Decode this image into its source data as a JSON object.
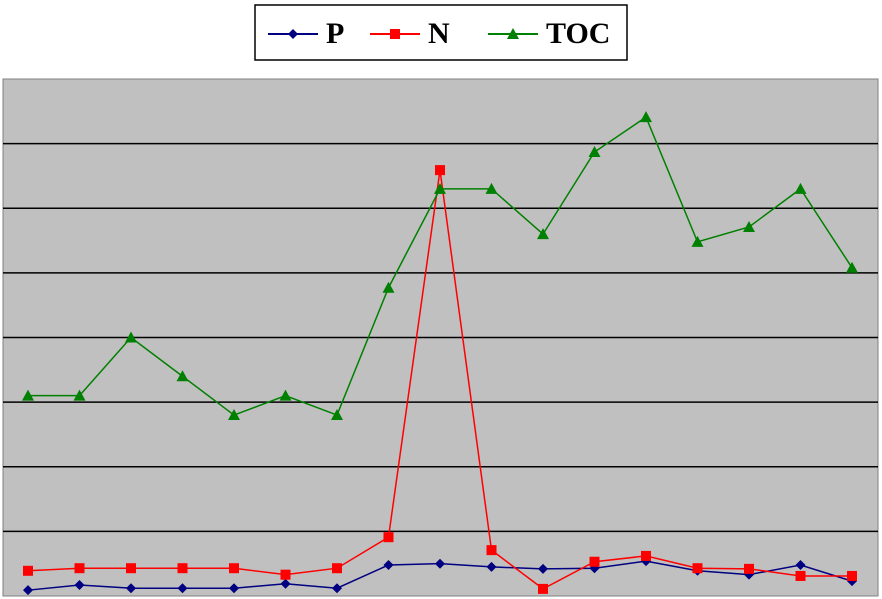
{
  "chart_data": {
    "type": "line",
    "categories": [
      null,
      null,
      null,
      null,
      null,
      null,
      null,
      null,
      null,
      null,
      null,
      null,
      null,
      null,
      null,
      null,
      null
    ],
    "series": [
      {
        "name": "P",
        "color": "#000080",
        "marker": "diamond",
        "values": [
          0.09,
          0.17,
          0.12,
          0.12,
          0.12,
          0.19,
          0.12,
          0.48,
          0.5,
          0.45,
          0.42,
          0.43,
          0.54,
          0.39,
          0.33,
          0.48,
          0.23
        ]
      },
      {
        "name": "N",
        "color": "#ff0000",
        "marker": "square",
        "values": [
          0.39,
          0.43,
          0.43,
          0.43,
          0.43,
          0.33,
          0.43,
          0.91,
          6.59,
          0.71,
          0.11,
          0.53,
          0.62,
          0.43,
          0.42,
          0.31,
          0.31
        ]
      },
      {
        "name": "TOC",
        "color": "#008000",
        "marker": "triangle",
        "values": [
          3.1,
          3.1,
          4.0,
          3.4,
          2.8,
          3.1,
          2.8,
          4.77,
          6.3,
          6.3,
          5.6,
          6.87,
          7.41,
          5.48,
          5.71,
          6.3,
          5.08
        ]
      }
    ],
    "ylim": [
      0,
      8
    ],
    "yticks": [
      1,
      2,
      3,
      4,
      5,
      6,
      7
    ],
    "grid": true,
    "legend": "top"
  }
}
